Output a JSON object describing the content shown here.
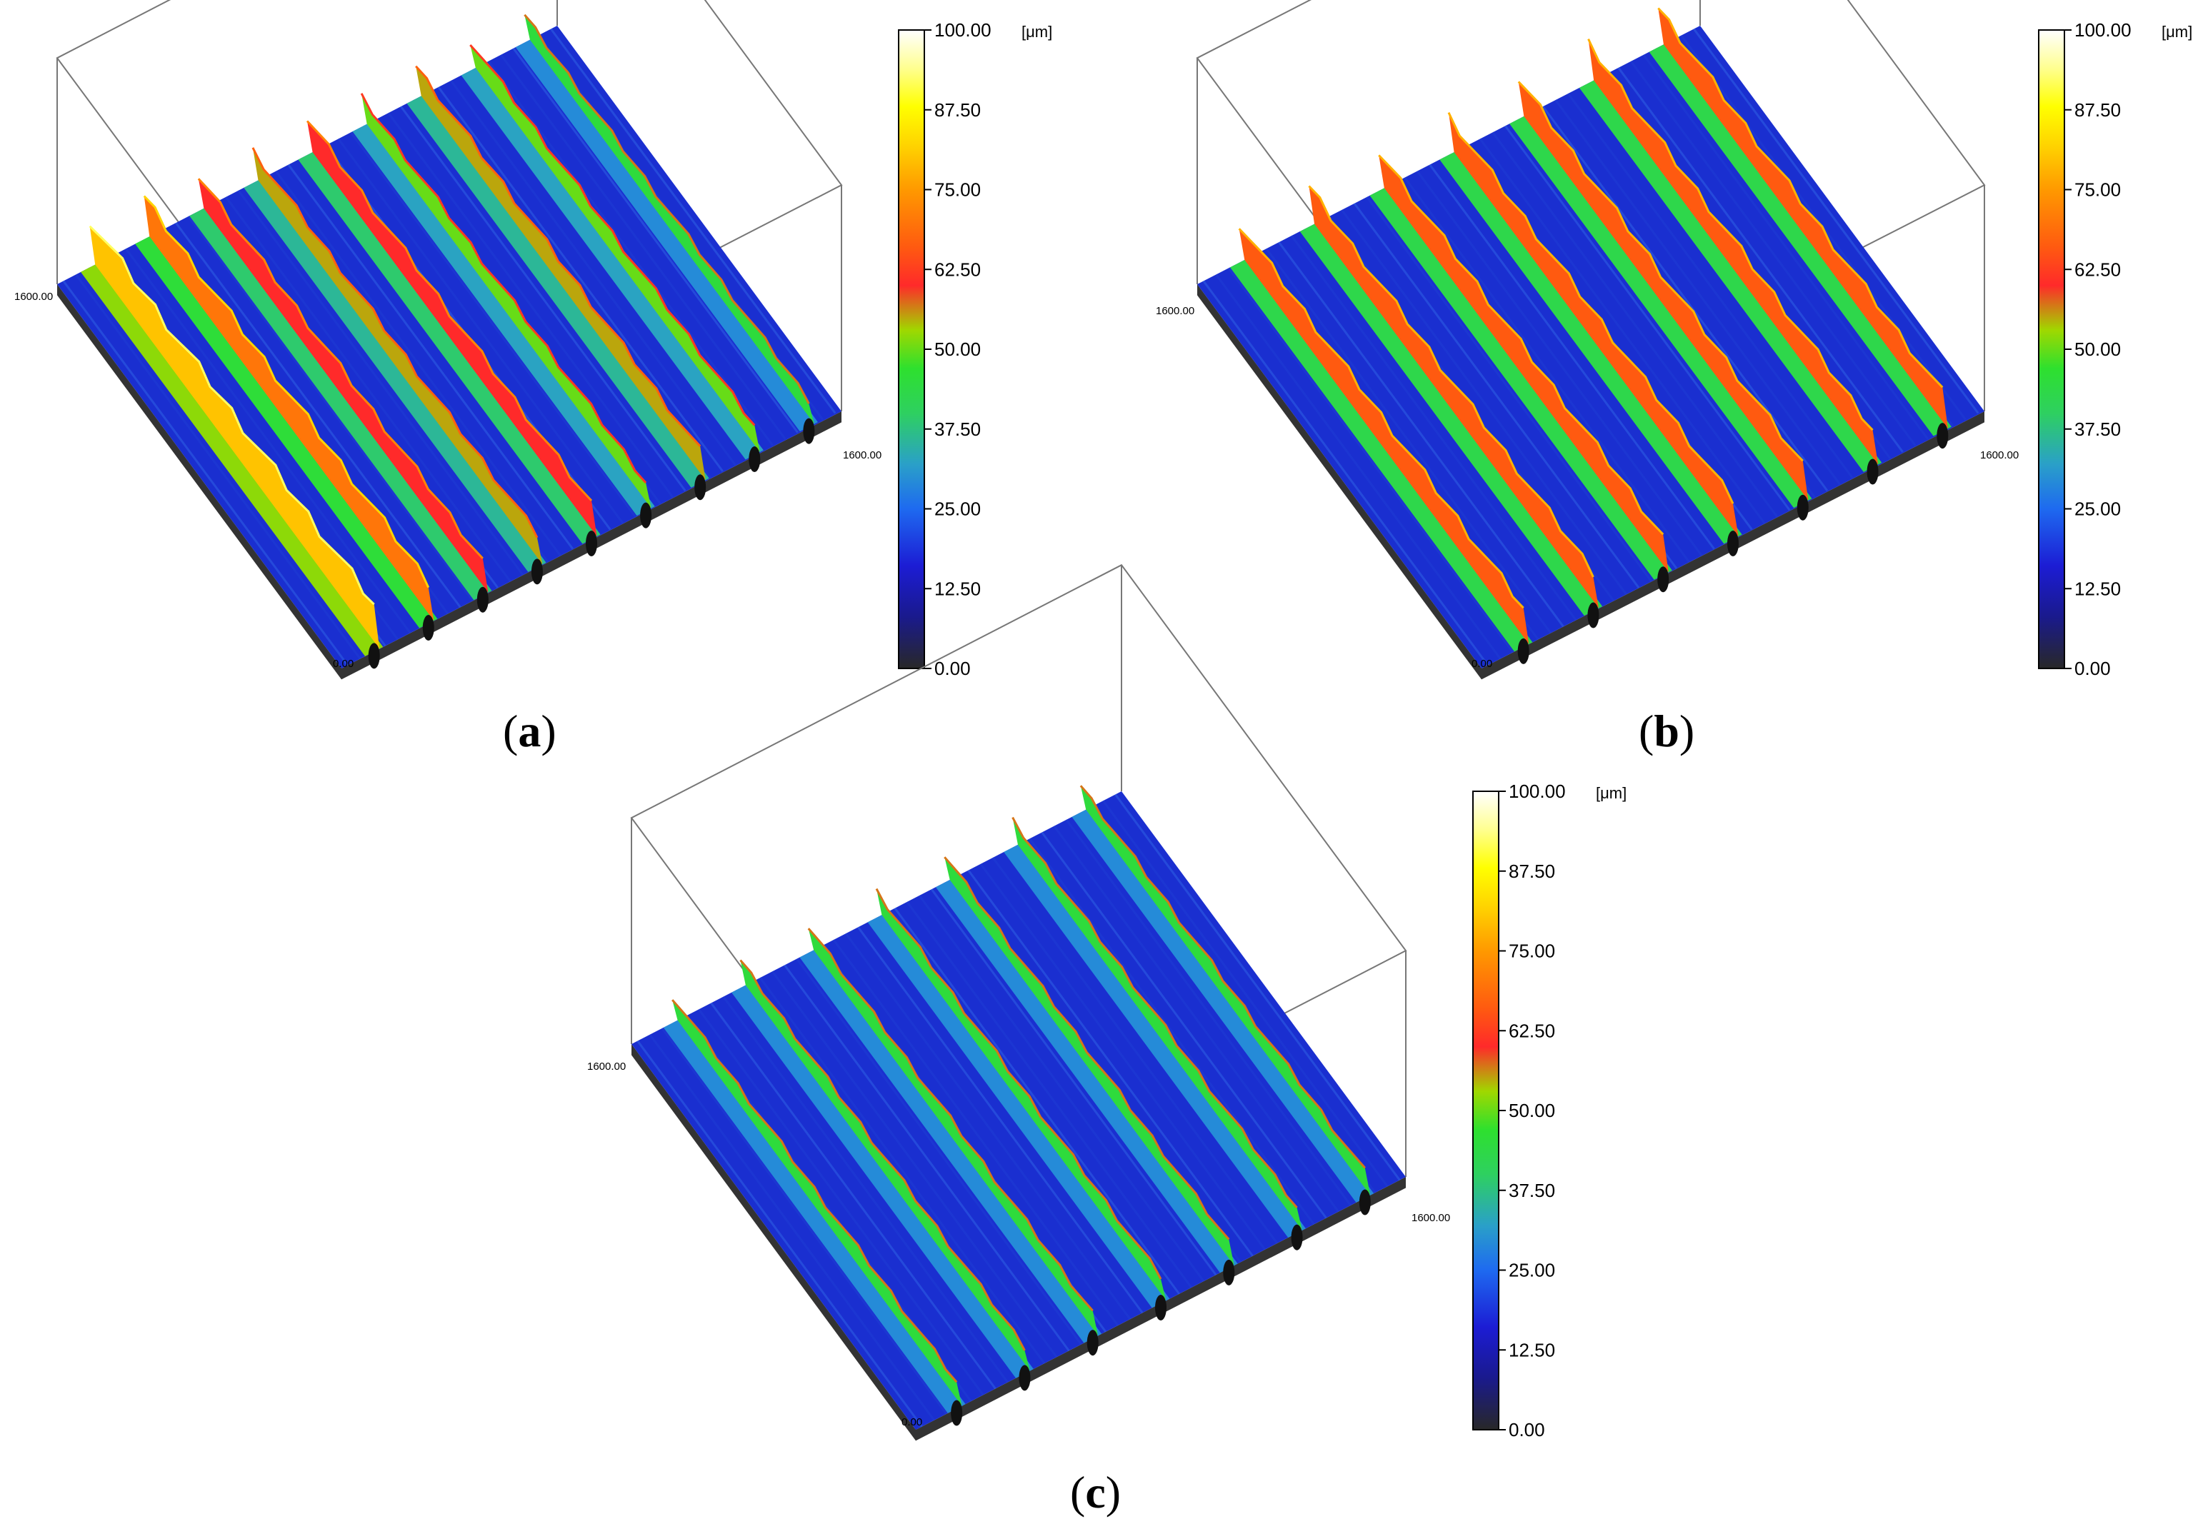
{
  "figure": {
    "panels": [
      {
        "id": "a",
        "caption": "a",
        "axis_labels": {
          "left": "1600.00",
          "right": "1600.00",
          "origin": "0.00"
        },
        "colorbar": {
          "unit": "[μm]",
          "ticks": [
            "100.00",
            "87.50",
            "75.00",
            "62.50",
            "50.00",
            "37.50",
            "25.00",
            "12.50",
            "0.00"
          ]
        },
        "ridge_levels": [
          0.8,
          0.7,
          0.6,
          0.55,
          0.6,
          0.5,
          0.55,
          0.5,
          0.45
        ]
      },
      {
        "id": "b",
        "caption": "b",
        "axis_labels": {
          "left": "1600.00",
          "right": "1600.00",
          "origin": "0.00"
        },
        "colorbar": {
          "unit": "[μm]",
          "ticks": [
            "100.00",
            "87.50",
            "75.00",
            "62.50",
            "50.00",
            "37.50",
            "25.00",
            "12.50",
            "0.00"
          ]
        },
        "ridge_levels": [
          0.66,
          0.66,
          0.66,
          0.66,
          0.66,
          0.66,
          0.66
        ]
      },
      {
        "id": "c",
        "caption": "c",
        "axis_labels": {
          "left": "1600.00",
          "right": "1600.00",
          "origin": "0.00"
        },
        "colorbar": {
          "unit": "[μm]",
          "ticks": [
            "100.00",
            "87.50",
            "75.00",
            "62.50",
            "50.00",
            "37.50",
            "25.00",
            "12.50",
            "0.00"
          ]
        },
        "ridge_levels": [
          0.45,
          0.45,
          0.45,
          0.45,
          0.45,
          0.45,
          0.45
        ]
      }
    ],
    "colors": {
      "frame": "#777777",
      "base": "#333333",
      "surface_low": "#1a2fd0",
      "colormap": [
        "#282828",
        "#1c1cd4",
        "#1e6af0",
        "#22c8a0",
        "#2ee02e",
        "#d4d400",
        "#ff9900",
        "#ff2a2a",
        "#ffff80",
        "#ffffff"
      ]
    }
  }
}
